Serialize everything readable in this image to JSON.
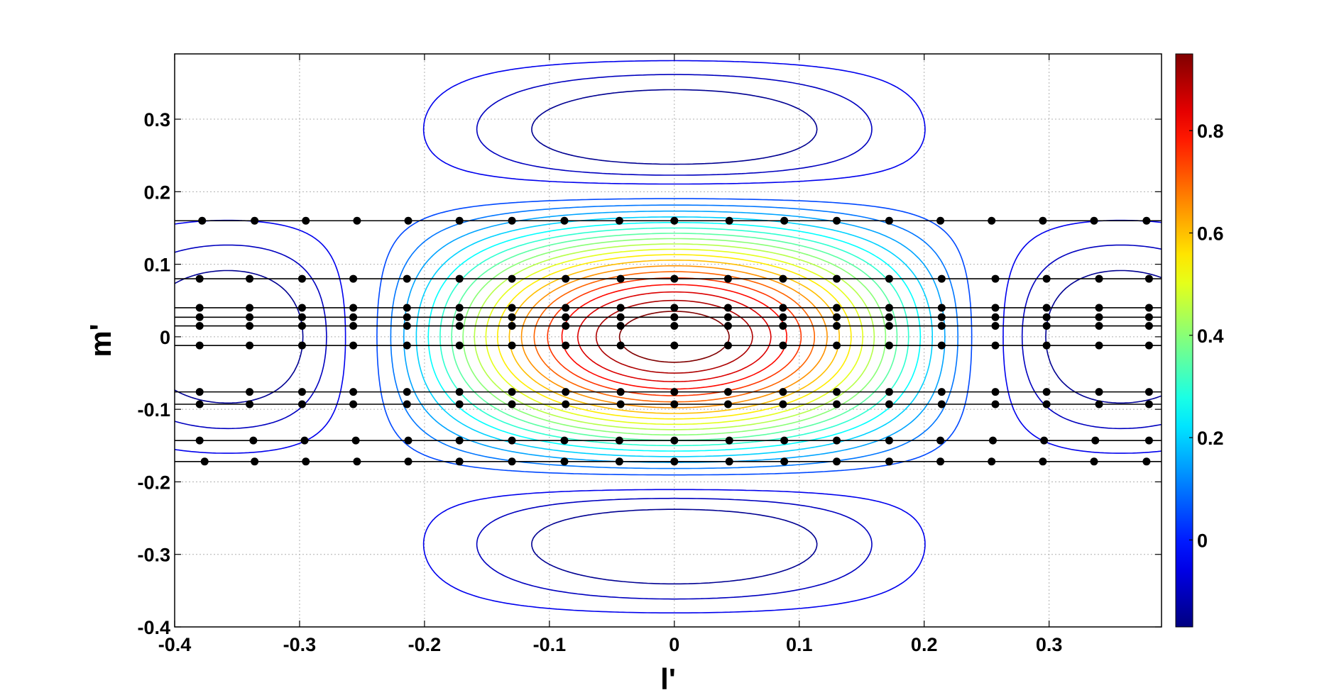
{
  "chart_data": {
    "type": "contour",
    "xlabel": "l'",
    "ylabel": "m'",
    "xlim": [
      -0.4,
      0.39
    ],
    "ylim": [
      -0.4,
      0.39
    ],
    "x_ticks": [
      -0.4,
      -0.3,
      -0.2,
      -0.1,
      0,
      0.1,
      0.2,
      0.3
    ],
    "x_tick_labels": [
      "-0.4",
      "-0.3",
      "-0.2",
      "-0.1",
      "0",
      "0.1",
      "0.2",
      "0.3"
    ],
    "y_ticks": [
      -0.4,
      -0.3,
      -0.2,
      -0.1,
      0,
      0.1,
      0.2,
      0.3
    ],
    "y_tick_labels": [
      "-0.4",
      "-0.3",
      "-0.2",
      "-0.1",
      "0",
      "0.1",
      "0.2",
      "0.3"
    ],
    "grid": true,
    "colorbar": {
      "range": [
        -0.17,
        0.95
      ],
      "ticks": [
        0,
        0.2,
        0.4,
        0.6,
        0.8
      ],
      "tick_labels": [
        "0",
        "0.2",
        "0.4",
        "0.6",
        "0.8"
      ],
      "colormap": "jet"
    },
    "contour_function": "sinc-like beam: sin(pi*l/0.25)/(pi*l/0.25) * sin(pi*m/0.2)/(pi*m/0.2)",
    "contour_levels": {
      "start": -0.15,
      "step": 0.05,
      "stop": 0.95
    },
    "sample_rows": [
      {
        "m": 0.16,
        "l": [
          -0.378,
          -0.336,
          -0.295,
          -0.254,
          -0.213,
          -0.172,
          -0.13,
          -0.088,
          -0.044,
          0,
          0.044,
          0.088,
          0.13,
          0.172,
          0.213,
          0.254,
          0.295,
          0.336,
          0.378
        ]
      },
      {
        "m": 0.08,
        "l": [
          -0.38,
          -0.34,
          -0.298,
          -0.257,
          -0.214,
          -0.172,
          -0.13,
          -0.087,
          -0.043,
          0,
          0.043,
          0.087,
          0.13,
          0.172,
          0.214,
          0.257,
          0.298,
          0.34,
          0.38
        ]
      },
      {
        "m": 0.04,
        "l": [
          -0.38,
          -0.34,
          -0.298,
          -0.257,
          -0.214,
          -0.172,
          -0.13,
          -0.087,
          -0.043,
          0,
          0.043,
          0.087,
          0.13,
          0.172,
          0.214,
          0.257,
          0.298,
          0.34,
          0.38
        ]
      },
      {
        "m": 0.027,
        "l": [
          -0.38,
          -0.34,
          -0.298,
          -0.257,
          -0.214,
          -0.172,
          -0.13,
          -0.087,
          -0.043,
          0,
          0.043,
          0.087,
          0.13,
          0.172,
          0.214,
          0.257,
          0.298,
          0.34,
          0.38
        ]
      },
      {
        "m": 0.015,
        "l": [
          -0.38,
          -0.34,
          -0.298,
          -0.257,
          -0.214,
          -0.172,
          -0.13,
          -0.087,
          -0.043,
          0,
          0.043,
          0.087,
          0.13,
          0.172,
          0.214,
          0.257,
          0.298,
          0.34,
          0.38
        ]
      },
      {
        "m": -0.012,
        "l": [
          -0.38,
          -0.34,
          -0.298,
          -0.257,
          -0.214,
          -0.172,
          -0.13,
          -0.087,
          -0.043,
          0,
          0.043,
          0.087,
          0.13,
          0.172,
          0.214,
          0.257,
          0.298,
          0.34,
          0.38
        ]
      },
      {
        "m": -0.076,
        "l": [
          -0.38,
          -0.34,
          -0.298,
          -0.257,
          -0.214,
          -0.172,
          -0.13,
          -0.087,
          -0.043,
          0,
          0.043,
          0.087,
          0.13,
          0.172,
          0.214,
          0.257,
          0.298,
          0.34,
          0.38
        ]
      },
      {
        "m": -0.093,
        "l": [
          -0.38,
          -0.34,
          -0.298,
          -0.257,
          -0.214,
          -0.172,
          -0.13,
          -0.087,
          -0.043,
          0,
          0.043,
          0.087,
          0.13,
          0.172,
          0.214,
          0.257,
          0.298,
          0.34,
          0.38
        ]
      },
      {
        "m": -0.143,
        "l": [
          -0.38,
          -0.337,
          -0.296,
          -0.255,
          -0.213,
          -0.172,
          -0.13,
          -0.088,
          -0.044,
          0,
          0.044,
          0.088,
          0.13,
          0.172,
          0.213,
          0.255,
          0.296,
          0.337,
          0.38
        ]
      },
      {
        "m": -0.172,
        "l": [
          -0.376,
          -0.336,
          -0.295,
          -0.254,
          -0.213,
          -0.172,
          -0.13,
          -0.088,
          -0.044,
          0,
          0.044,
          0.088,
          0.13,
          0.172,
          0.213,
          0.254,
          0.295,
          0.336,
          0.378
        ]
      }
    ]
  },
  "colors": {
    "axis": "#000000",
    "grid": "#b0b0b0",
    "sample_line": "#000000",
    "sample_point": "#000000"
  }
}
